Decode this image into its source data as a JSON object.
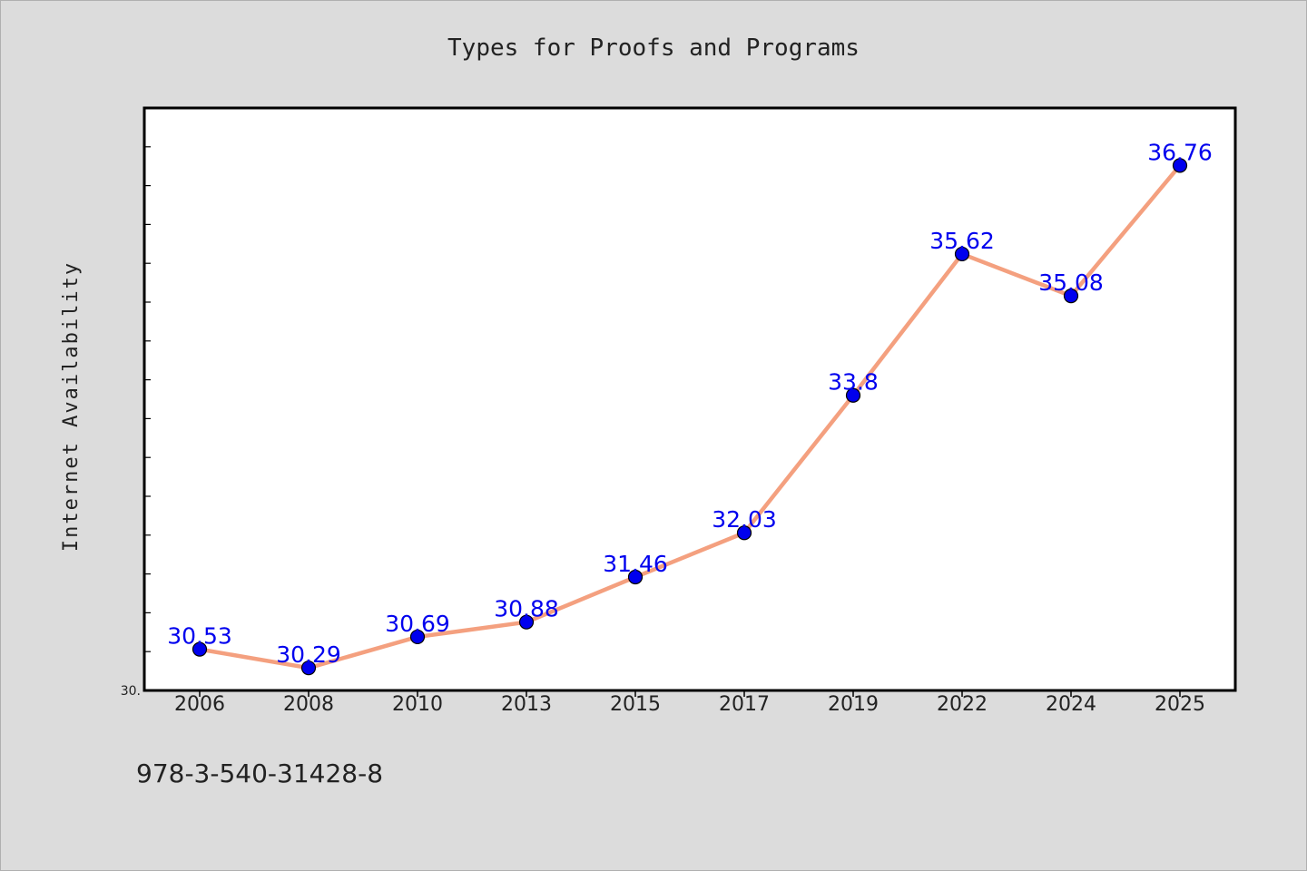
{
  "chart_data": {
    "type": "line",
    "title": "Types for Proofs and Programs",
    "ylabel": "Internet Availability",
    "xlabel": "",
    "categories": [
      "2006",
      "2008",
      "2010",
      "2013",
      "2015",
      "2017",
      "2019",
      "2022",
      "2024",
      "2025"
    ],
    "series": [
      {
        "values": [
          30.53,
          30.29,
          30.69,
          30.88,
          31.46,
          32.03,
          33.8,
          35.62,
          35.08,
          36.76
        ],
        "data_labels": [
          "30.53",
          "30.29",
          "30.69",
          "30.88",
          "31.46",
          "32.03",
          "33.8",
          "35.62",
          "35.08",
          "36.76"
        ]
      }
    ],
    "ylim": [
      30,
      37.5
    ],
    "ytick_label": "30.",
    "grid": false,
    "legend": "none",
    "colors": {
      "line": "#f4a07f",
      "marker": "#0000ee",
      "label": "#0000ee",
      "background": "#dcdcdc",
      "plot_background": "#ffffff"
    }
  },
  "footer": {
    "text": "978-3-540-31428-8"
  }
}
